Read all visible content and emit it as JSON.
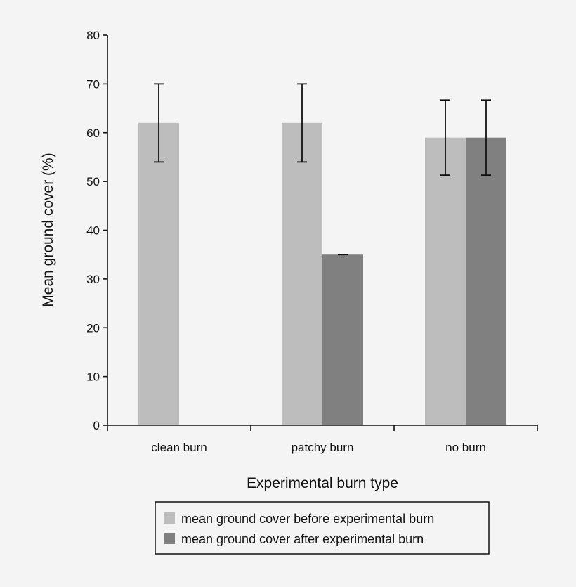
{
  "chart_data": {
    "type": "bar",
    "title": "",
    "xlabel": "Experimental burn type",
    "ylabel": "Mean ground cover (%)",
    "ylim": [
      0,
      80
    ],
    "yticks": [
      0,
      10,
      20,
      30,
      40,
      50,
      60,
      70,
      80
    ],
    "grid": false,
    "legend_position": "bottom",
    "categories": [
      "clean burn",
      "patchy burn",
      "no burn"
    ],
    "series": [
      {
        "name": "mean ground cover before experimental burn",
        "color": "#bdbdbd",
        "values": [
          62,
          62,
          59
        ],
        "error": [
          8,
          8,
          7.7
        ]
      },
      {
        "name": "mean ground cover after experimental burn",
        "color": "#808080",
        "values": [
          null,
          35,
          59
        ],
        "error": [
          null,
          0,
          7.7
        ]
      }
    ]
  }
}
